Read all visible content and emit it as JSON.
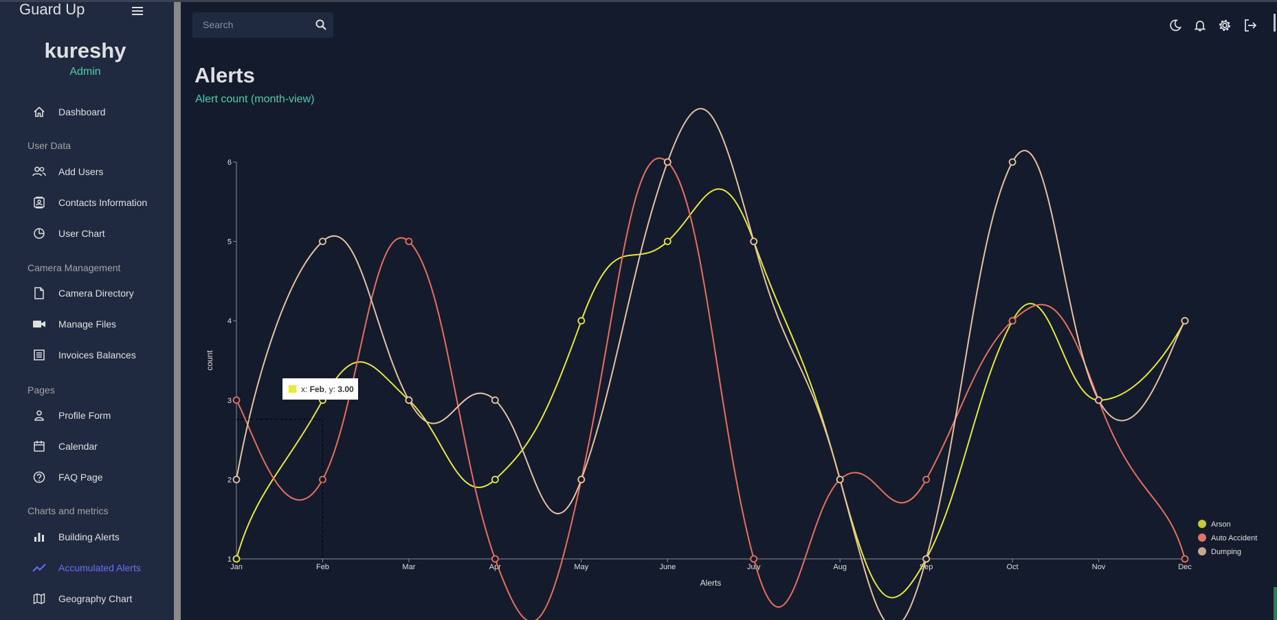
{
  "app": {
    "title": "Guard Up"
  },
  "profile": {
    "name": "kureshy",
    "role": "Admin"
  },
  "sidebar": {
    "dashboard": "Dashboard",
    "sections": [
      {
        "label": "User Data",
        "items": [
          "Add Users",
          "Contacts Information",
          "User Chart"
        ]
      },
      {
        "label": "Camera Management",
        "items": [
          "Camera Directory",
          "Manage Files",
          "Invoices Balances"
        ]
      },
      {
        "label": "Pages",
        "items": [
          "Profile Form",
          "Calendar",
          "FAQ Page"
        ]
      },
      {
        "label": "Charts and metrics",
        "items": [
          "Building Alerts",
          "Accumulated Alerts",
          "Geography Chart"
        ]
      }
    ],
    "active_item": "Accumulated Alerts"
  },
  "search": {
    "placeholder": "Search"
  },
  "header_icons": [
    "moon-icon",
    "bell-icon",
    "gear-icon",
    "logout-icon"
  ],
  "page": {
    "title": "Alerts",
    "subtitle": "Alert count (month-view)"
  },
  "tooltip": {
    "x_prefix": "x: ",
    "x_value": "Feb",
    "y_prefix": ", y: ",
    "y_value": "3.00"
  },
  "colors": {
    "accent_green": "#4cceac",
    "active_blue": "#6870fa",
    "bg": "#141b2d",
    "panel": "#1f2a40"
  },
  "chart_data": {
    "type": "line",
    "xlabel": "Alerts",
    "ylabel": "count",
    "ylim": [
      1,
      6
    ],
    "yticks": [
      1,
      2,
      3,
      4,
      5,
      6
    ],
    "categories": [
      "Jan",
      "Feb",
      "Mar",
      "Apr",
      "May",
      "June",
      "July",
      "Aug",
      "Sep",
      "Oct",
      "Nov",
      "Dec"
    ],
    "series": [
      {
        "name": "Arson",
        "color": "#e8e83e",
        "legend_color": "#c7c73a",
        "values": [
          1,
          3,
          3,
          2,
          4,
          5,
          5,
          2,
          1,
          4,
          3,
          4
        ]
      },
      {
        "name": "Auto Accident",
        "color": "#e8705c",
        "legend_color": "#e2726e",
        "values": [
          3,
          2,
          5,
          1,
          2,
          6,
          1,
          2,
          2,
          4,
          3,
          1
        ]
      },
      {
        "name": "Dumping",
        "color": "#e8c3a0",
        "legend_color": "#c8a88a",
        "values": [
          2,
          5,
          3,
          3,
          2,
          6,
          5,
          2,
          1,
          6,
          3,
          4
        ]
      }
    ],
    "legend_position": "bottom-right",
    "grid": false
  }
}
